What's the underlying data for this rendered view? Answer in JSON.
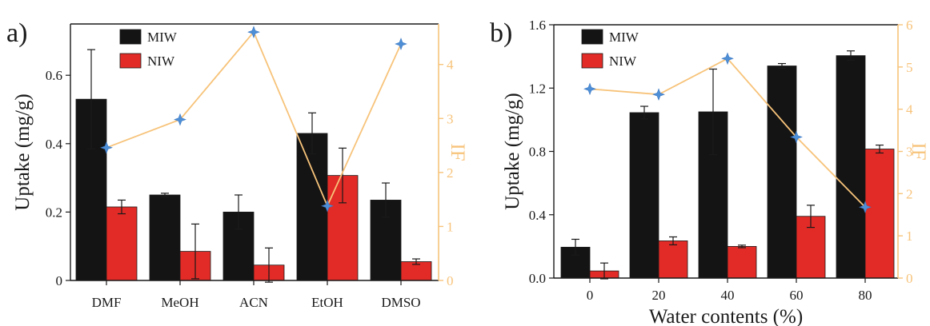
{
  "colors": {
    "miw": "#141414",
    "niw": "#e22b26",
    "ef": "#f7c37a",
    "ef_marker": "#4f8fd6",
    "axis": "#1a1a1a"
  },
  "chart_data": [
    {
      "type": "bar",
      "panel_label": "a)",
      "categories": [
        "DMF",
        "MeOH",
        "ACN",
        "EtOH",
        "DMSO"
      ],
      "ylabel": "Uptake (mg/g)",
      "y2label": "IF",
      "xlabel": "",
      "ylim": [
        0,
        0.75
      ],
      "yticks": [
        "0",
        "0.2",
        "0.4",
        "0.6"
      ],
      "yticks_values": [
        0,
        0.2,
        0.4,
        0.6
      ],
      "y2lim": [
        0,
        4.75
      ],
      "y2ticks": [
        "0",
        "1",
        "2",
        "3",
        "4"
      ],
      "y2ticks_values": [
        0,
        1,
        2,
        3,
        4
      ],
      "legend_position": "top-left",
      "series": [
        {
          "name": "MIW",
          "values": [
            0.53,
            0.25,
            0.2,
            0.43,
            0.235
          ],
          "errors": [
            0.145,
            0.005,
            0.05,
            0.06,
            0.05
          ]
        },
        {
          "name": "NIW",
          "values": [
            0.215,
            0.085,
            0.045,
            0.307,
            0.055
          ],
          "errors": [
            0.02,
            0.08,
            0.05,
            0.08,
            0.008
          ]
        }
      ],
      "ef_series": {
        "values": [
          2.46,
          2.98,
          4.6,
          1.38,
          4.38
        ]
      }
    },
    {
      "type": "bar",
      "panel_label": "b)",
      "categories": [
        "0",
        "20",
        "40",
        "60",
        "80"
      ],
      "xlabel": "Water contents (%)",
      "ylabel": "Uptake (mg/g)",
      "y2label": "IF",
      "ylim": [
        0,
        1.6
      ],
      "yticks": [
        "0.0",
        "0.4",
        "0.8",
        "1.2",
        "1.6"
      ],
      "yticks_values": [
        0,
        0.4,
        0.8,
        1.2,
        1.6
      ],
      "y2lim": [
        0,
        6
      ],
      "y2ticks": [
        "0",
        "1",
        "2",
        "3",
        "4",
        "5",
        "6"
      ],
      "y2ticks_values": [
        0,
        1,
        2,
        3,
        4,
        5,
        6
      ],
      "legend_position": "top-left",
      "series": [
        {
          "name": "MIW",
          "values": [
            0.195,
            1.045,
            1.05,
            1.34,
            1.405
          ],
          "errors": [
            0.05,
            0.04,
            0.27,
            0.015,
            0.03
          ]
        },
        {
          "name": "NIW",
          "values": [
            0.045,
            0.235,
            0.2,
            0.39,
            0.815
          ],
          "errors": [
            0.05,
            0.025,
            0.008,
            0.07,
            0.025
          ]
        }
      ],
      "ef_series": {
        "values": [
          4.48,
          4.35,
          5.2,
          3.34,
          1.68
        ]
      }
    }
  ]
}
